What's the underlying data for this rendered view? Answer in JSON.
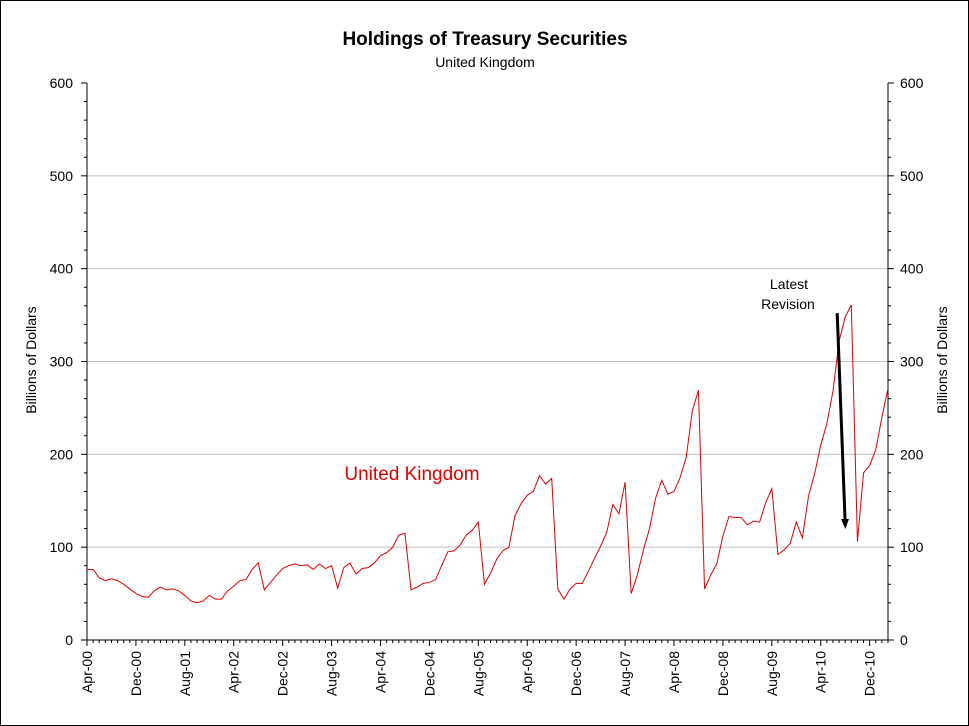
{
  "chart_data": {
    "type": "line",
    "title": "Holdings of Treasury Securities",
    "subtitle": "United Kingdom",
    "ylabel_left": "Billions of Dollars",
    "ylabel_right": "Billions of Dollars",
    "ylim": [
      0,
      600
    ],
    "yticks": [
      0,
      100,
      200,
      300,
      400,
      500,
      600
    ],
    "ytick_labels": [
      "0",
      "100",
      "200",
      "300",
      "400",
      "500",
      "600"
    ],
    "grid": true,
    "xtick_labels": [
      "Apr-00",
      "Dec-00",
      "Aug-01",
      "Apr-02",
      "Dec-02",
      "Aug-03",
      "Apr-04",
      "Dec-04",
      "Aug-05",
      "Apr-06",
      "Dec-06",
      "Aug-07",
      "Apr-08",
      "Dec-08",
      "Aug-09",
      "Apr-10",
      "Dec-10"
    ],
    "xtick_every_months": 8,
    "series_label": "United Kingdom",
    "series": [
      {
        "name": "United Kingdom",
        "color": "#e00000",
        "start": "Apr-00",
        "values": [
          76,
          76,
          67,
          64,
          66,
          64,
          60,
          55,
          50,
          47,
          46,
          53,
          57,
          54,
          55,
          53,
          48,
          42,
          40,
          42,
          48,
          44,
          44,
          53,
          58,
          64,
          65,
          76,
          83,
          54,
          62,
          70,
          77,
          80,
          82,
          80,
          81,
          76,
          82,
          77,
          80,
          56,
          78,
          83,
          71,
          77,
          78,
          83,
          91,
          94,
          100,
          113,
          115,
          54,
          57,
          61,
          62,
          65,
          80,
          95,
          96,
          102,
          113,
          118,
          127,
          60,
          72,
          87,
          96,
          100,
          134,
          147,
          156,
          160,
          177,
          168,
          174,
          55,
          44,
          55,
          61,
          61,
          74,
          88,
          101,
          116,
          146,
          136,
          170,
          50,
          70,
          97,
          120,
          153,
          172,
          157,
          160,
          175,
          197,
          247,
          269,
          55,
          70,
          82,
          112,
          133,
          132,
          132,
          124,
          128,
          127,
          148,
          163,
          92,
          97,
          104,
          127,
          110,
          155,
          179,
          210,
          233,
          268,
          322,
          348,
          361,
          106,
          180,
          188,
          205,
          240,
          271
        ]
      }
    ],
    "annotation": {
      "lines": [
        "Latest",
        "Revision"
      ],
      "points_to": "Aug-10",
      "arrow_from_value": 352,
      "arrow_to_value": 125
    }
  }
}
